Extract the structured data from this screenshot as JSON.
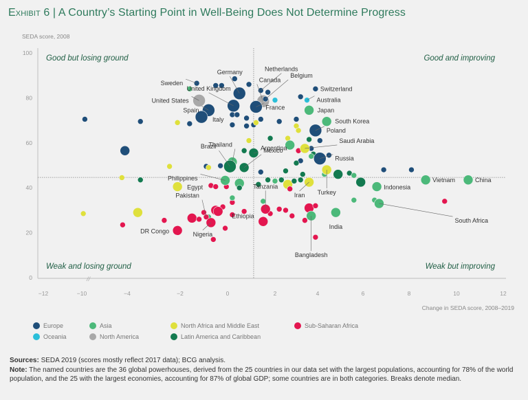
{
  "title": {
    "exhibit": "Exhibit 6",
    "separator": "|",
    "text": "A Country’s Starting Point in Well-Being Does Not Determine Progress"
  },
  "legend": [
    {
      "label": "Europe",
      "region": "europe"
    },
    {
      "label": "Asia",
      "region": "asia"
    },
    {
      "label": "North Africa and Middle East",
      "region": "mena"
    },
    {
      "label": "Sub-Saharan Africa",
      "region": "ssa"
    },
    {
      "label": "Oceania",
      "region": "oceania"
    },
    {
      "label": "North America",
      "region": "namerica"
    },
    {
      "label": "Latin America and Caribbean",
      "region": "latam"
    }
  ],
  "colors": {
    "europe": "#1f4e79",
    "asia": "#4cb97a",
    "mena": "#dfe03c",
    "ssa": "#e3164f",
    "oceania": "#2bbfd9",
    "namerica": "#a8a8a8",
    "latam": "#137a50",
    "title": "#2e7a5c",
    "quadrant": "#1f5e44"
  },
  "footnote": {
    "sources_label": "Sources:",
    "sources_text": " SEDA 2019 (scores mostly reflect 2017 data); BCG analysis.",
    "note_label": "Note:",
    "note_text": " The named countries are the 36 global powerhouses, derived from the 25 countries in our data set with the largest populations, accounting for 78% of the world population, and the 25 with the largest economies, accounting for 87% of global GDP; some countries are in both categories. Breaks denote median."
  },
  "chart_data": {
    "type": "scatter",
    "title": "A Country’s Starting Point in Well-Being Does Not Determine Progress",
    "xlabel": "Change in SEDA score, 2008–2019",
    "ylabel": "SEDA score, 2008",
    "xticks": [
      -12,
      -10,
      -4,
      -2,
      0,
      2,
      4,
      6,
      8,
      10,
      12
    ],
    "yticks": [
      0,
      20,
      40,
      60,
      80,
      100
    ],
    "xlim": [
      -12,
      12
    ],
    "ylim": [
      0,
      100
    ],
    "axis_break_x": "between -10 and -4",
    "median_x": 1.1,
    "median_y": 44.6,
    "grid": false,
    "legend_position": "bottom-left",
    "quadrants": {
      "top_left": "Good but losing ground",
      "top_right": "Good and improving",
      "bottom_left": "Weak and losing ground",
      "bottom_right": "Weak but improving"
    },
    "points": [
      {
        "label": "Germany",
        "region": "europe",
        "x": 0.5,
        "y": 82,
        "size": "l"
      },
      {
        "label": "Netherlands",
        "region": "europe",
        "x": 1.4,
        "y": 83.3,
        "size": "s"
      },
      {
        "label": "United Kingdom",
        "region": "europe",
        "x": 0.25,
        "y": 76.5,
        "size": "l"
      },
      {
        "label": "Sweden",
        "region": "europe",
        "x": -1.3,
        "y": 86.5,
        "size": "s"
      },
      {
        "label": "Canada",
        "region": "namerica",
        "x": 1.5,
        "y": 78.5,
        "size": "l"
      },
      {
        "label": "Belgium",
        "region": "europe",
        "x": 1.6,
        "y": 79.5,
        "size": "s"
      },
      {
        "label": "United States",
        "region": "namerica",
        "x": -1.2,
        "y": 78.8,
        "size": "l"
      },
      {
        "label": "Spain",
        "region": "europe",
        "x": -0.8,
        "y": 74.5,
        "size": "l"
      },
      {
        "label": "Italy",
        "region": "europe",
        "x": -1.1,
        "y": 71.5,
        "size": "l"
      },
      {
        "label": "France",
        "region": "europe",
        "x": 1.2,
        "y": 76,
        "size": "l"
      },
      {
        "label": "Switzerland",
        "region": "europe",
        "x": 3.9,
        "y": 84,
        "size": "s"
      },
      {
        "label": "Australia",
        "region": "oceania",
        "x": 3.5,
        "y": 79,
        "size": "s"
      },
      {
        "label": "Japan",
        "region": "asia",
        "x": 3.6,
        "y": 74.5,
        "size": "m"
      },
      {
        "label": "South Korea",
        "region": "asia",
        "x": 4.4,
        "y": 69.5,
        "size": "m"
      },
      {
        "label": "Poland",
        "region": "europe",
        "x": 3.9,
        "y": 65.5,
        "size": "l"
      },
      {
        "label": "Saudi Arabia",
        "region": "mena",
        "x": 3.4,
        "y": 57.5,
        "size": "m"
      },
      {
        "label": "Russia",
        "region": "europe",
        "x": 4.1,
        "y": 53,
        "size": "l"
      },
      {
        "label": "Thailand",
        "region": "asia",
        "x": 0.2,
        "y": 51.5,
        "size": "m"
      },
      {
        "label": "Argentina",
        "region": "latam",
        "x": 1.1,
        "y": 55.5,
        "size": "m"
      },
      {
        "label": "Brazil",
        "region": "latam",
        "x": 0.1,
        "y": 49.5,
        "size": "l"
      },
      {
        "label": "Mexico",
        "region": "latam",
        "x": 0.7,
        "y": 49,
        "size": "m"
      },
      {
        "label": "Philippines",
        "region": "asia",
        "x": -0.1,
        "y": 43.3,
        "size": "m"
      },
      {
        "label": "Egypt",
        "region": "mena",
        "x": -2.1,
        "y": 40.5,
        "size": "m"
      },
      {
        "label": "Vietnam",
        "region": "asia",
        "x": 8.7,
        "y": 43.5,
        "size": "m"
      },
      {
        "label": "China",
        "region": "asia",
        "x": 10.5,
        "y": 43.5,
        "size": "m"
      },
      {
        "label": "Indonesia",
        "region": "asia",
        "x": 6.6,
        "y": 40.5,
        "size": "m"
      },
      {
        "label": "Iran",
        "region": "mena",
        "x": 3.6,
        "y": 42.5,
        "size": "m"
      },
      {
        "label": "Turkey",
        "region": "mena",
        "x": 4.4,
        "y": 48,
        "size": "m"
      },
      {
        "label": "Tanzania",
        "region": "ssa",
        "x": 1.6,
        "y": 30.5,
        "size": "m"
      },
      {
        "label": "South Africa",
        "region": "asia",
        "x": 6.7,
        "y": 33,
        "size": "m"
      },
      {
        "label": "India",
        "region": "asia",
        "x": 4.8,
        "y": 29,
        "size": "m"
      },
      {
        "label": "Bangladesh",
        "region": "asia",
        "x": 3.7,
        "y": 27.5,
        "size": "m"
      },
      {
        "label": "Pakistan",
        "region": "ssa",
        "x": -0.9,
        "y": 27,
        "size": "s"
      },
      {
        "label": "Nigeria",
        "region": "ssa",
        "x": -0.7,
        "y": 24.5,
        "size": "m"
      },
      {
        "label": "Ethiopia",
        "region": "ssa",
        "x": -0.4,
        "y": 29.5,
        "size": "m"
      },
      {
        "label": "DR Congo",
        "region": "ssa",
        "x": -2.1,
        "y": 21,
        "size": "m"
      },
      {
        "label": "",
        "region": "europe",
        "x": -9.6,
        "y": 70.5,
        "size": "s"
      },
      {
        "label": "",
        "region": "europe",
        "x": -3.5,
        "y": 69.5,
        "size": "s"
      },
      {
        "label": "",
        "region": "europe",
        "x": -4.3,
        "y": 56.5,
        "size": "m"
      },
      {
        "label": "",
        "region": "mena",
        "x": -2.1,
        "y": 69,
        "size": "s"
      },
      {
        "label": "",
        "region": "europe",
        "x": -1.6,
        "y": 68.5,
        "size": "s"
      },
      {
        "label": "",
        "region": "asia",
        "x": -1.6,
        "y": 84,
        "size": "s"
      },
      {
        "label": "",
        "region": "europe",
        "x": -0.5,
        "y": 85.5,
        "size": "s"
      },
      {
        "label": "",
        "region": "europe",
        "x": -0.25,
        "y": 85.5,
        "size": "s"
      },
      {
        "label": "",
        "region": "europe",
        "x": 0.3,
        "y": 88.5,
        "size": "s"
      },
      {
        "label": "",
        "region": "europe",
        "x": 0.9,
        "y": 86,
        "size": "s"
      },
      {
        "label": "",
        "region": "europe",
        "x": 1.7,
        "y": 82.5,
        "size": "s"
      },
      {
        "label": "",
        "region": "europe",
        "x": 0.2,
        "y": 72.5,
        "size": "s"
      },
      {
        "label": "",
        "region": "europe",
        "x": 0.4,
        "y": 72.5,
        "size": "s"
      },
      {
        "label": "",
        "region": "europe",
        "x": 0.8,
        "y": 71,
        "size": "s"
      },
      {
        "label": "",
        "region": "europe",
        "x": 0.2,
        "y": 68,
        "size": "s"
      },
      {
        "label": "",
        "region": "europe",
        "x": 0.8,
        "y": 67.5,
        "size": "s"
      },
      {
        "label": "",
        "region": "europe",
        "x": 1.1,
        "y": 68,
        "size": "s"
      },
      {
        "label": "",
        "region": "europe",
        "x": 1.4,
        "y": 70.5,
        "size": "s"
      },
      {
        "label": "",
        "region": "mena",
        "x": 1.2,
        "y": 69,
        "size": "s"
      },
      {
        "label": "",
        "region": "europe",
        "x": 2.2,
        "y": 69.5,
        "size": "s"
      },
      {
        "label": "",
        "region": "oceania",
        "x": 2.0,
        "y": 79,
        "size": "s"
      },
      {
        "label": "",
        "region": "europe",
        "x": 3.2,
        "y": 80.5,
        "size": "s"
      },
      {
        "label": "",
        "region": "mena",
        "x": 3.0,
        "y": 67.5,
        "size": "s"
      },
      {
        "label": "",
        "region": "mena",
        "x": 3.1,
        "y": 65.5,
        "size": "s"
      },
      {
        "label": "",
        "region": "europe",
        "x": 3.0,
        "y": 70.5,
        "size": "s"
      },
      {
        "label": "",
        "region": "mena",
        "x": 0.9,
        "y": 61,
        "size": "s"
      },
      {
        "label": "",
        "region": "latam",
        "x": 1.8,
        "y": 62,
        "size": "s"
      },
      {
        "label": "",
        "region": "mena",
        "x": 2.6,
        "y": 62,
        "size": "s"
      },
      {
        "label": "",
        "region": "asia",
        "x": 2.7,
        "y": 59,
        "size": "m"
      },
      {
        "label": "",
        "region": "latam",
        "x": 3.6,
        "y": 61.5,
        "size": "s"
      },
      {
        "label": "",
        "region": "europe",
        "x": 4.1,
        "y": 61,
        "size": "s"
      },
      {
        "label": "",
        "region": "ssa",
        "x": 3.1,
        "y": 56.5,
        "size": "s"
      },
      {
        "label": "",
        "region": "europe",
        "x": 3.7,
        "y": 57.5,
        "size": "s"
      },
      {
        "label": "",
        "region": "latam",
        "x": 3.8,
        "y": 55,
        "size": "s"
      },
      {
        "label": "",
        "region": "asia",
        "x": 3.7,
        "y": 54,
        "size": "s"
      },
      {
        "label": "",
        "region": "europe",
        "x": 4.5,
        "y": 54.5,
        "size": "s"
      },
      {
        "label": "",
        "region": "europe",
        "x": 3.2,
        "y": 52,
        "size": "s"
      },
      {
        "label": "",
        "region": "latam",
        "x": 3.0,
        "y": 51,
        "size": "s"
      },
      {
        "label": "",
        "region": "latam",
        "x": 0.7,
        "y": 56.5,
        "size": "s"
      },
      {
        "label": "",
        "region": "europe",
        "x": 1.4,
        "y": 47,
        "size": "s"
      },
      {
        "label": "",
        "region": "europe",
        "x": -0.9,
        "y": 49.5,
        "size": "s"
      },
      {
        "label": "",
        "region": "mena",
        "x": -0.8,
        "y": 49,
        "size": "s"
      },
      {
        "label": "",
        "region": "europe",
        "x": -0.3,
        "y": 49.8,
        "size": "s"
      },
      {
        "label": "",
        "region": "mena",
        "x": -2.4,
        "y": 49.5,
        "size": "s"
      },
      {
        "label": "",
        "region": "mena",
        "x": -4.7,
        "y": 44.5,
        "size": "s"
      },
      {
        "label": "",
        "region": "latam",
        "x": -3.5,
        "y": 43.5,
        "size": "s"
      },
      {
        "label": "",
        "region": "ssa",
        "x": -0.7,
        "y": 41,
        "size": "s"
      },
      {
        "label": "",
        "region": "ssa",
        "x": -0.5,
        "y": 40.5,
        "size": "s"
      },
      {
        "label": "",
        "region": "ssa",
        "x": -0.05,
        "y": 40.5,
        "size": "s"
      },
      {
        "label": "",
        "region": "asia",
        "x": 0.5,
        "y": 42,
        "size": "m"
      },
      {
        "label": "",
        "region": "latam",
        "x": 0.5,
        "y": 40,
        "size": "s"
      },
      {
        "label": "",
        "region": "latam",
        "x": 1.3,
        "y": 41.5,
        "size": "s"
      },
      {
        "label": "",
        "region": "latam",
        "x": 1.7,
        "y": 43.5,
        "size": "s"
      },
      {
        "label": "",
        "region": "asia",
        "x": 2.0,
        "y": 43,
        "size": "s"
      },
      {
        "label": "",
        "region": "latam",
        "x": 2.3,
        "y": 43.5,
        "size": "s"
      },
      {
        "label": "",
        "region": "latam",
        "x": 2.5,
        "y": 47.5,
        "size": "s"
      },
      {
        "label": "",
        "region": "mena",
        "x": 2.6,
        "y": 41.5,
        "size": "m"
      },
      {
        "label": "",
        "region": "ssa",
        "x": 2.7,
        "y": 39.5,
        "size": "s"
      },
      {
        "label": "",
        "region": "latam",
        "x": 2.9,
        "y": 43,
        "size": "s"
      },
      {
        "label": "",
        "region": "latam",
        "x": 3.2,
        "y": 43.5,
        "size": "s"
      },
      {
        "label": "",
        "region": "latam",
        "x": 3.3,
        "y": 46,
        "size": "s"
      },
      {
        "label": "",
        "region": "asia",
        "x": 4.3,
        "y": 46,
        "size": "s"
      },
      {
        "label": "",
        "region": "latam",
        "x": 4.9,
        "y": 46,
        "size": "m"
      },
      {
        "label": "",
        "region": "latam",
        "x": 5.4,
        "y": 46.5,
        "size": "s"
      },
      {
        "label": "",
        "region": "asia",
        "x": 5.6,
        "y": 45.5,
        "size": "s"
      },
      {
        "label": "",
        "region": "latam",
        "x": 5.9,
        "y": 42.5,
        "size": "m"
      },
      {
        "label": "",
        "region": "europe",
        "x": 6.9,
        "y": 48,
        "size": "s"
      },
      {
        "label": "",
        "region": "europe",
        "x": 8.1,
        "y": 48,
        "size": "s"
      },
      {
        "label": "",
        "region": "asia",
        "x": 6.5,
        "y": 34.5,
        "size": "s"
      },
      {
        "label": "",
        "region": "asia",
        "x": 5.6,
        "y": 34.5,
        "size": "s"
      },
      {
        "label": "",
        "region": "asia",
        "x": 1.5,
        "y": 34,
        "size": "s"
      },
      {
        "label": "",
        "region": "ssa",
        "x": 9.5,
        "y": 34,
        "size": "s"
      },
      {
        "label": "",
        "region": "ssa",
        "x": 3.6,
        "y": 31,
        "size": "m"
      },
      {
        "label": "",
        "region": "ssa",
        "x": 3.9,
        "y": 32,
        "size": "s"
      },
      {
        "label": "",
        "region": "ssa",
        "x": 1.8,
        "y": 28.5,
        "size": "s"
      },
      {
        "label": "",
        "region": "ssa",
        "x": 2.2,
        "y": 30.5,
        "size": "s"
      },
      {
        "label": "",
        "region": "ssa",
        "x": 2.5,
        "y": 30,
        "size": "s"
      },
      {
        "label": "",
        "region": "ssa",
        "x": 2.8,
        "y": 27.5,
        "size": "s"
      },
      {
        "label": "",
        "region": "ssa",
        "x": 3.4,
        "y": 25.5,
        "size": "s"
      },
      {
        "label": "",
        "region": "ssa",
        "x": 1.5,
        "y": 25,
        "size": "m"
      },
      {
        "label": "",
        "region": "ssa",
        "x": 3.9,
        "y": 18,
        "size": "s"
      },
      {
        "label": "",
        "region": "ssa",
        "x": 0.2,
        "y": 33.5,
        "size": "s"
      },
      {
        "label": "",
        "region": "ssa",
        "x": -0.5,
        "y": 30,
        "size": "m"
      },
      {
        "label": "",
        "region": "ssa",
        "x": 0.7,
        "y": 29.5,
        "size": "s"
      },
      {
        "label": "",
        "region": "ssa",
        "x": 0.2,
        "y": 28,
        "size": "s"
      },
      {
        "label": "",
        "region": "ssa",
        "x": -0.2,
        "y": 31.5,
        "size": "s"
      },
      {
        "label": "",
        "region": "ssa",
        "x": -1.0,
        "y": 29,
        "size": "s"
      },
      {
        "label": "",
        "region": "ssa",
        "x": -1.5,
        "y": 26.5,
        "size": "m"
      },
      {
        "label": "",
        "region": "ssa",
        "x": -1.2,
        "y": 26,
        "size": "s"
      },
      {
        "label": "",
        "region": "ssa",
        "x": -0.1,
        "y": 22,
        "size": "s"
      },
      {
        "label": "",
        "region": "ssa",
        "x": -0.6,
        "y": 17,
        "size": "s"
      },
      {
        "label": "",
        "region": "ssa",
        "x": -2.6,
        "y": 25.5,
        "size": "s"
      },
      {
        "label": "",
        "region": "ssa",
        "x": -4.6,
        "y": 23.5,
        "size": "s"
      },
      {
        "label": "",
        "region": "asia",
        "x": 0.2,
        "y": 35.5,
        "size": "s"
      },
      {
        "label": "",
        "region": "asia",
        "x": -0.8,
        "y": 27,
        "size": "s"
      },
      {
        "label": "",
        "region": "mena",
        "x": -9.8,
        "y": 28.5,
        "size": "s"
      },
      {
        "label": "",
        "region": "mena",
        "x": -3.6,
        "y": 29,
        "size": "m"
      }
    ]
  }
}
